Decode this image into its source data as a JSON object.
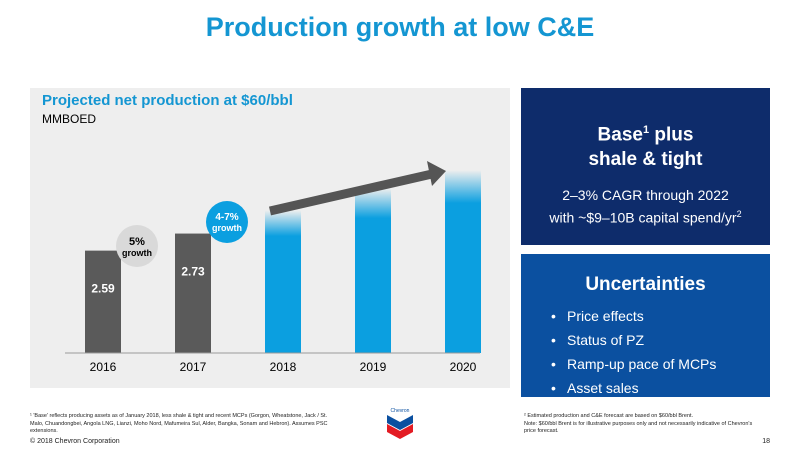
{
  "title": "Production growth at low C&E",
  "chart_data": {
    "type": "bar",
    "title": "Projected net production at $60/bbl",
    "ylabel": "MMBOED",
    "categories": [
      "2016",
      "2017",
      "2018",
      "2019",
      "2020"
    ],
    "values": [
      2.59,
      2.73,
      2.92,
      3.1,
      3.25
    ],
    "data_labels": [
      "2.59",
      "2.73",
      "",
      "",
      ""
    ],
    "actual_count": 2,
    "ylim": [
      1.75,
      3.35
    ],
    "colors": {
      "actual": "#5a5a5a",
      "projected": "#0b9fe0"
    },
    "annotations": {
      "growth_actual": {
        "pct": "5%",
        "word": "growth"
      },
      "growth_projected": {
        "pct": "4-7%",
        "word": "growth"
      }
    }
  },
  "base_box": {
    "heading_line1": "Base",
    "heading_sup": "1",
    "heading_line1_tail": " plus",
    "heading_line2": "shale & tight",
    "body_line1": "2–3% CAGR through 2022",
    "body_line2": "with ~$9–10B capital spend/yr",
    "body_sup": "2"
  },
  "uncertainties_box": {
    "heading": "Uncertainties",
    "items": [
      "Price effects",
      "Status of PZ",
      "Ramp-up pace of MCPs",
      "Asset sales"
    ]
  },
  "footnote_left": "¹ 'Base' reflects producing assets as of January 2018, less shale & tight and recent MCPs (Gorgon, Wheatstone, Jack / St. Malo, Chuandongbei, Angola LNG, Lianzi, Moho Nord, Mafumeira Sul, Alder, Bangka, Sonam and Hebron). Assumes PSC extensions.",
  "footnote_right_1": "² Estimated production and C&E forecast are based on $60/bbl Brent.",
  "footnote_right_2": "Note: $60/bbl Brent is for illustrative purposes only and not necessarily indicative of Chevron's price forecast.",
  "logo_text": "Chevron",
  "copyright": "© 2018 Chevron Corporation",
  "page_number": "18"
}
